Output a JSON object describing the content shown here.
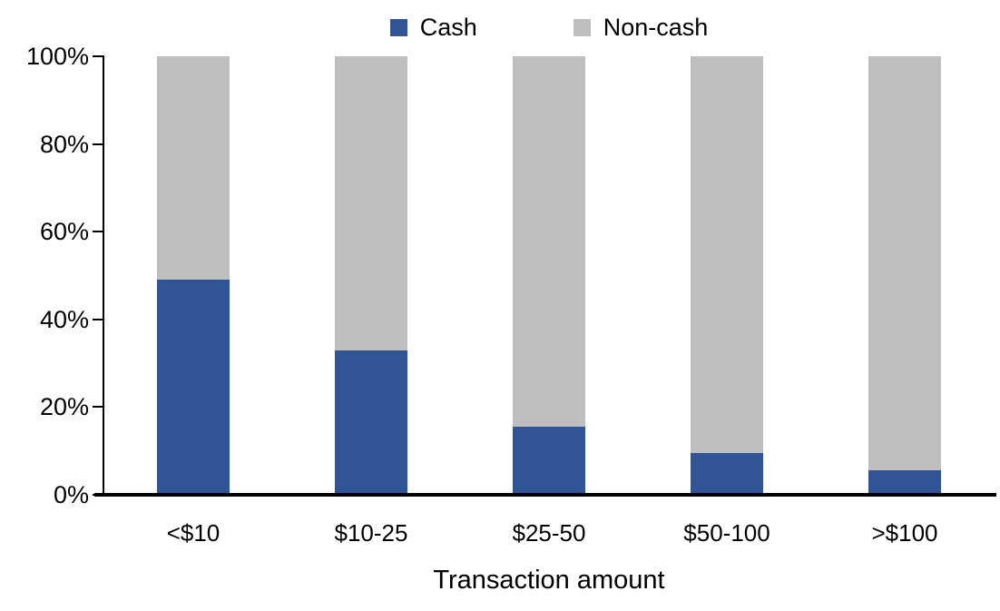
{
  "chart_data": {
    "type": "bar",
    "stacked": true,
    "title": "",
    "xlabel": "Transaction amount",
    "ylabel": "",
    "categories": [
      "<$10",
      "$10-25",
      "$25-50",
      "$50-100",
      ">$100"
    ],
    "series": [
      {
        "name": "Cash",
        "color": "#2F5597",
        "values": [
          49,
          33,
          15.5,
          9.5,
          5.5
        ]
      },
      {
        "name": "Non-cash",
        "color": "#BFBFBF",
        "values": [
          51,
          67,
          84.5,
          90.5,
          94.5
        ]
      }
    ],
    "ylim": [
      0,
      100
    ],
    "y_ticks": [
      {
        "value": 0,
        "label": "0%"
      },
      {
        "value": 20,
        "label": "20%"
      },
      {
        "value": 40,
        "label": "40%"
      },
      {
        "value": 60,
        "label": "60%"
      },
      {
        "value": 80,
        "label": "80%"
      },
      {
        "value": 100,
        "label": "100%"
      }
    ],
    "grid": false,
    "legend_position": "top-center",
    "axis_color": "#000000",
    "text_color": "#000000",
    "background_color": "#FFFFFF"
  }
}
